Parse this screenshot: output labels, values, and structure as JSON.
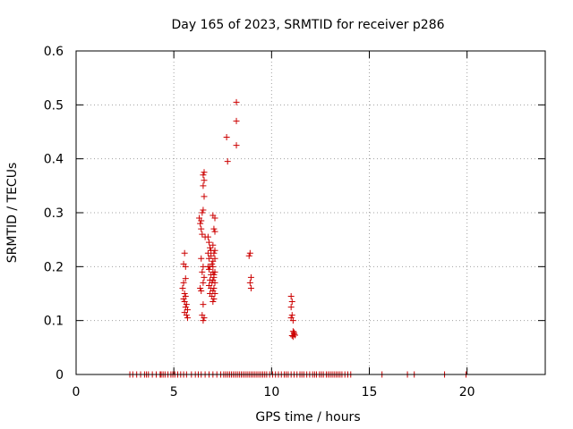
{
  "chart_data": {
    "type": "scatter",
    "title": "Day 165 of 2023, SRMTID for receiver p286",
    "xlabel": "GPS time / hours",
    "ylabel": "SRMTID / TECUs",
    "xlim": [
      0,
      24
    ],
    "ylim": [
      0,
      0.6
    ],
    "grid": true,
    "marker": "+",
    "color": "#cc0000",
    "x_ticks": [
      {
        "value": 0,
        "label": "0"
      },
      {
        "value": 5,
        "label": "5"
      },
      {
        "value": 10,
        "label": "10"
      },
      {
        "value": 15,
        "label": "15"
      },
      {
        "value": 20,
        "label": "20"
      }
    ],
    "y_ticks": [
      {
        "value": 0,
        "label": "0"
      },
      {
        "value": 0.1,
        "label": "0.1"
      },
      {
        "value": 0.2,
        "label": "0.2"
      },
      {
        "value": 0.3,
        "label": "0.3"
      },
      {
        "value": 0.4,
        "label": "0.4"
      },
      {
        "value": 0.5,
        "label": "0.5"
      },
      {
        "value": 0.6,
        "label": "0.6"
      }
    ],
    "series": [
      {
        "name": "SRMTID",
        "points": [
          [
            2.75,
            0
          ],
          [
            2.9,
            0
          ],
          [
            3.1,
            0
          ],
          [
            3.3,
            0
          ],
          [
            3.5,
            0
          ],
          [
            3.6,
            0
          ],
          [
            3.7,
            0
          ],
          [
            3.9,
            0
          ],
          [
            4.1,
            0
          ],
          [
            4.3,
            0
          ],
          [
            4.35,
            0
          ],
          [
            4.45,
            0
          ],
          [
            4.55,
            0
          ],
          [
            4.7,
            0
          ],
          [
            4.85,
            0
          ],
          [
            4.95,
            0
          ],
          [
            5.05,
            0
          ],
          [
            5.2,
            0
          ],
          [
            5.35,
            0
          ],
          [
            5.5,
            0
          ],
          [
            5.65,
            0
          ],
          [
            5.9,
            0
          ],
          [
            6.1,
            0
          ],
          [
            6.25,
            0
          ],
          [
            6.4,
            0
          ],
          [
            6.6,
            0
          ],
          [
            6.8,
            0
          ],
          [
            7.0,
            0
          ],
          [
            7.2,
            0
          ],
          [
            7.4,
            0
          ],
          [
            7.55,
            0
          ],
          [
            7.65,
            0
          ],
          [
            7.75,
            0
          ],
          [
            7.85,
            0
          ],
          [
            7.95,
            0
          ],
          [
            8.05,
            0
          ],
          [
            8.15,
            0
          ],
          [
            8.25,
            0
          ],
          [
            8.35,
            0
          ],
          [
            8.45,
            0
          ],
          [
            8.55,
            0
          ],
          [
            8.65,
            0
          ],
          [
            8.75,
            0
          ],
          [
            8.85,
            0
          ],
          [
            8.95,
            0
          ],
          [
            9.05,
            0
          ],
          [
            9.15,
            0
          ],
          [
            9.25,
            0
          ],
          [
            9.35,
            0
          ],
          [
            9.45,
            0
          ],
          [
            9.55,
            0
          ],
          [
            9.65,
            0
          ],
          [
            9.75,
            0
          ],
          [
            9.9,
            0
          ],
          [
            10.05,
            0
          ],
          [
            10.2,
            0
          ],
          [
            10.35,
            0
          ],
          [
            10.5,
            0
          ],
          [
            10.65,
            0
          ],
          [
            10.75,
            0
          ],
          [
            10.85,
            0
          ],
          [
            11.0,
            0
          ],
          [
            11.15,
            0
          ],
          [
            11.3,
            0
          ],
          [
            11.45,
            0
          ],
          [
            11.55,
            0
          ],
          [
            11.65,
            0
          ],
          [
            11.8,
            0
          ],
          [
            11.95,
            0
          ],
          [
            12.1,
            0
          ],
          [
            12.2,
            0
          ],
          [
            12.3,
            0
          ],
          [
            12.45,
            0
          ],
          [
            12.55,
            0
          ],
          [
            12.65,
            0
          ],
          [
            12.8,
            0
          ],
          [
            12.9,
            0
          ],
          [
            13.0,
            0
          ],
          [
            13.1,
            0
          ],
          [
            13.2,
            0
          ],
          [
            13.3,
            0
          ],
          [
            13.4,
            0
          ],
          [
            13.5,
            0
          ],
          [
            13.6,
            0
          ],
          [
            13.75,
            0
          ],
          [
            13.9,
            0
          ],
          [
            14.05,
            0
          ],
          [
            15.65,
            0
          ],
          [
            16.95,
            0
          ],
          [
            17.3,
            0
          ],
          [
            18.85,
            0
          ],
          [
            19.95,
            0
          ],
          [
            5.55,
            0.225
          ],
          [
            5.5,
            0.205
          ],
          [
            5.6,
            0.2
          ],
          [
            5.45,
            0.16
          ],
          [
            5.55,
            0.15
          ],
          [
            5.6,
            0.145
          ],
          [
            5.5,
            0.14
          ],
          [
            5.55,
            0.135
          ],
          [
            5.65,
            0.13
          ],
          [
            5.6,
            0.125
          ],
          [
            5.7,
            0.12
          ],
          [
            5.55,
            0.115
          ],
          [
            5.65,
            0.11
          ],
          [
            5.7,
            0.105
          ],
          [
            5.6,
            0.178
          ],
          [
            5.5,
            0.17
          ],
          [
            6.3,
            0.29
          ],
          [
            6.4,
            0.285
          ],
          [
            6.35,
            0.28
          ],
          [
            6.45,
            0.3
          ],
          [
            6.5,
            0.305
          ],
          [
            6.55,
            0.375
          ],
          [
            6.5,
            0.37
          ],
          [
            6.55,
            0.36
          ],
          [
            6.5,
            0.35
          ],
          [
            6.55,
            0.33
          ],
          [
            6.4,
            0.27
          ],
          [
            6.45,
            0.26
          ],
          [
            6.6,
            0.255
          ],
          [
            6.4,
            0.215
          ],
          [
            6.5,
            0.2
          ],
          [
            6.45,
            0.19
          ],
          [
            6.55,
            0.18
          ],
          [
            6.5,
            0.17
          ],
          [
            6.4,
            0.155
          ],
          [
            6.5,
            0.13
          ],
          [
            6.45,
            0.11
          ],
          [
            6.5,
            0.1
          ],
          [
            6.55,
            0.105
          ],
          [
            6.35,
            0.16
          ],
          [
            6.75,
            0.255
          ],
          [
            6.8,
            0.245
          ],
          [
            6.85,
            0.235
          ],
          [
            6.75,
            0.225
          ],
          [
            6.9,
            0.22
          ],
          [
            6.8,
            0.215
          ],
          [
            6.95,
            0.205
          ],
          [
            6.85,
            0.2
          ],
          [
            6.8,
            0.195
          ],
          [
            7.0,
            0.19
          ],
          [
            6.9,
            0.185
          ],
          [
            7.05,
            0.18
          ],
          [
            6.85,
            0.175
          ],
          [
            6.95,
            0.17
          ],
          [
            6.8,
            0.165
          ],
          [
            6.9,
            0.16
          ],
          [
            7.0,
            0.155
          ],
          [
            6.85,
            0.15
          ],
          [
            6.95,
            0.145
          ],
          [
            7.05,
            0.14
          ],
          [
            6.75,
            0.2
          ],
          [
            7.0,
            0.2
          ],
          [
            6.9,
            0.23
          ],
          [
            7.0,
            0.295
          ],
          [
            7.1,
            0.29
          ],
          [
            7.05,
            0.27
          ],
          [
            7.1,
            0.265
          ],
          [
            7.0,
            0.24
          ],
          [
            7.1,
            0.23
          ],
          [
            7.05,
            0.225
          ],
          [
            7.1,
            0.215
          ],
          [
            7.0,
            0.21
          ],
          [
            7.1,
            0.19
          ],
          [
            7.05,
            0.185
          ],
          [
            7.0,
            0.175
          ],
          [
            7.1,
            0.17
          ],
          [
            7.05,
            0.16
          ],
          [
            7.1,
            0.15
          ],
          [
            7.0,
            0.135
          ],
          [
            7.75,
            0.395
          ],
          [
            7.7,
            0.44
          ],
          [
            8.2,
            0.505
          ],
          [
            8.2,
            0.47
          ],
          [
            8.2,
            0.425
          ],
          [
            8.9,
            0.225
          ],
          [
            8.85,
            0.22
          ],
          [
            8.95,
            0.18
          ],
          [
            8.9,
            0.17
          ],
          [
            8.95,
            0.16
          ],
          [
            11.0,
            0.145
          ],
          [
            11.05,
            0.135
          ],
          [
            11.0,
            0.125
          ],
          [
            11.05,
            0.11
          ],
          [
            11.1,
            0.1
          ],
          [
            11.0,
            0.105
          ],
          [
            11.1,
            0.08
          ],
          [
            11.15,
            0.075
          ],
          [
            11.05,
            0.072
          ],
          [
            11.2,
            0.073
          ],
          [
            11.1,
            0.07
          ],
          [
            11.15,
            0.078
          ]
        ]
      }
    ]
  }
}
